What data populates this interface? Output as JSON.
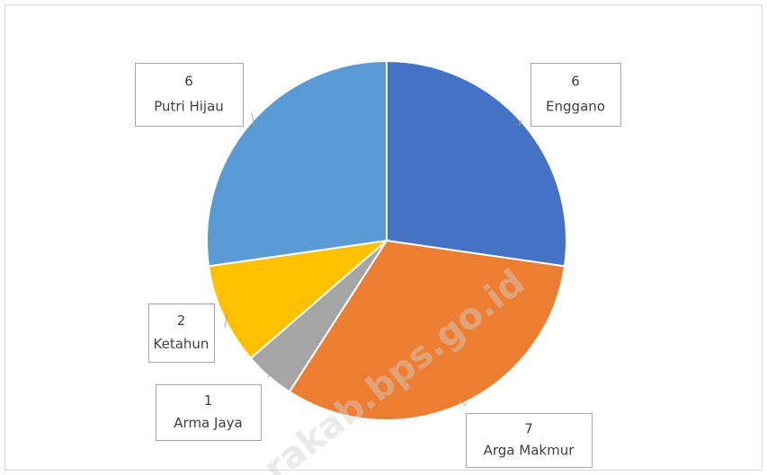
{
  "chart_data": {
    "type": "pie",
    "categories": [
      "Enggano",
      "Arga Makmur",
      "Arma Jaya",
      "Ketahun",
      "Putri Hijau"
    ],
    "values": [
      6,
      7,
      1,
      2,
      6
    ],
    "colors": [
      "#4472c4",
      "#ed7d31",
      "#a5a5a5",
      "#ffc000",
      "#5b9bd5"
    ],
    "watermark": "rakab.bps.go.id"
  }
}
